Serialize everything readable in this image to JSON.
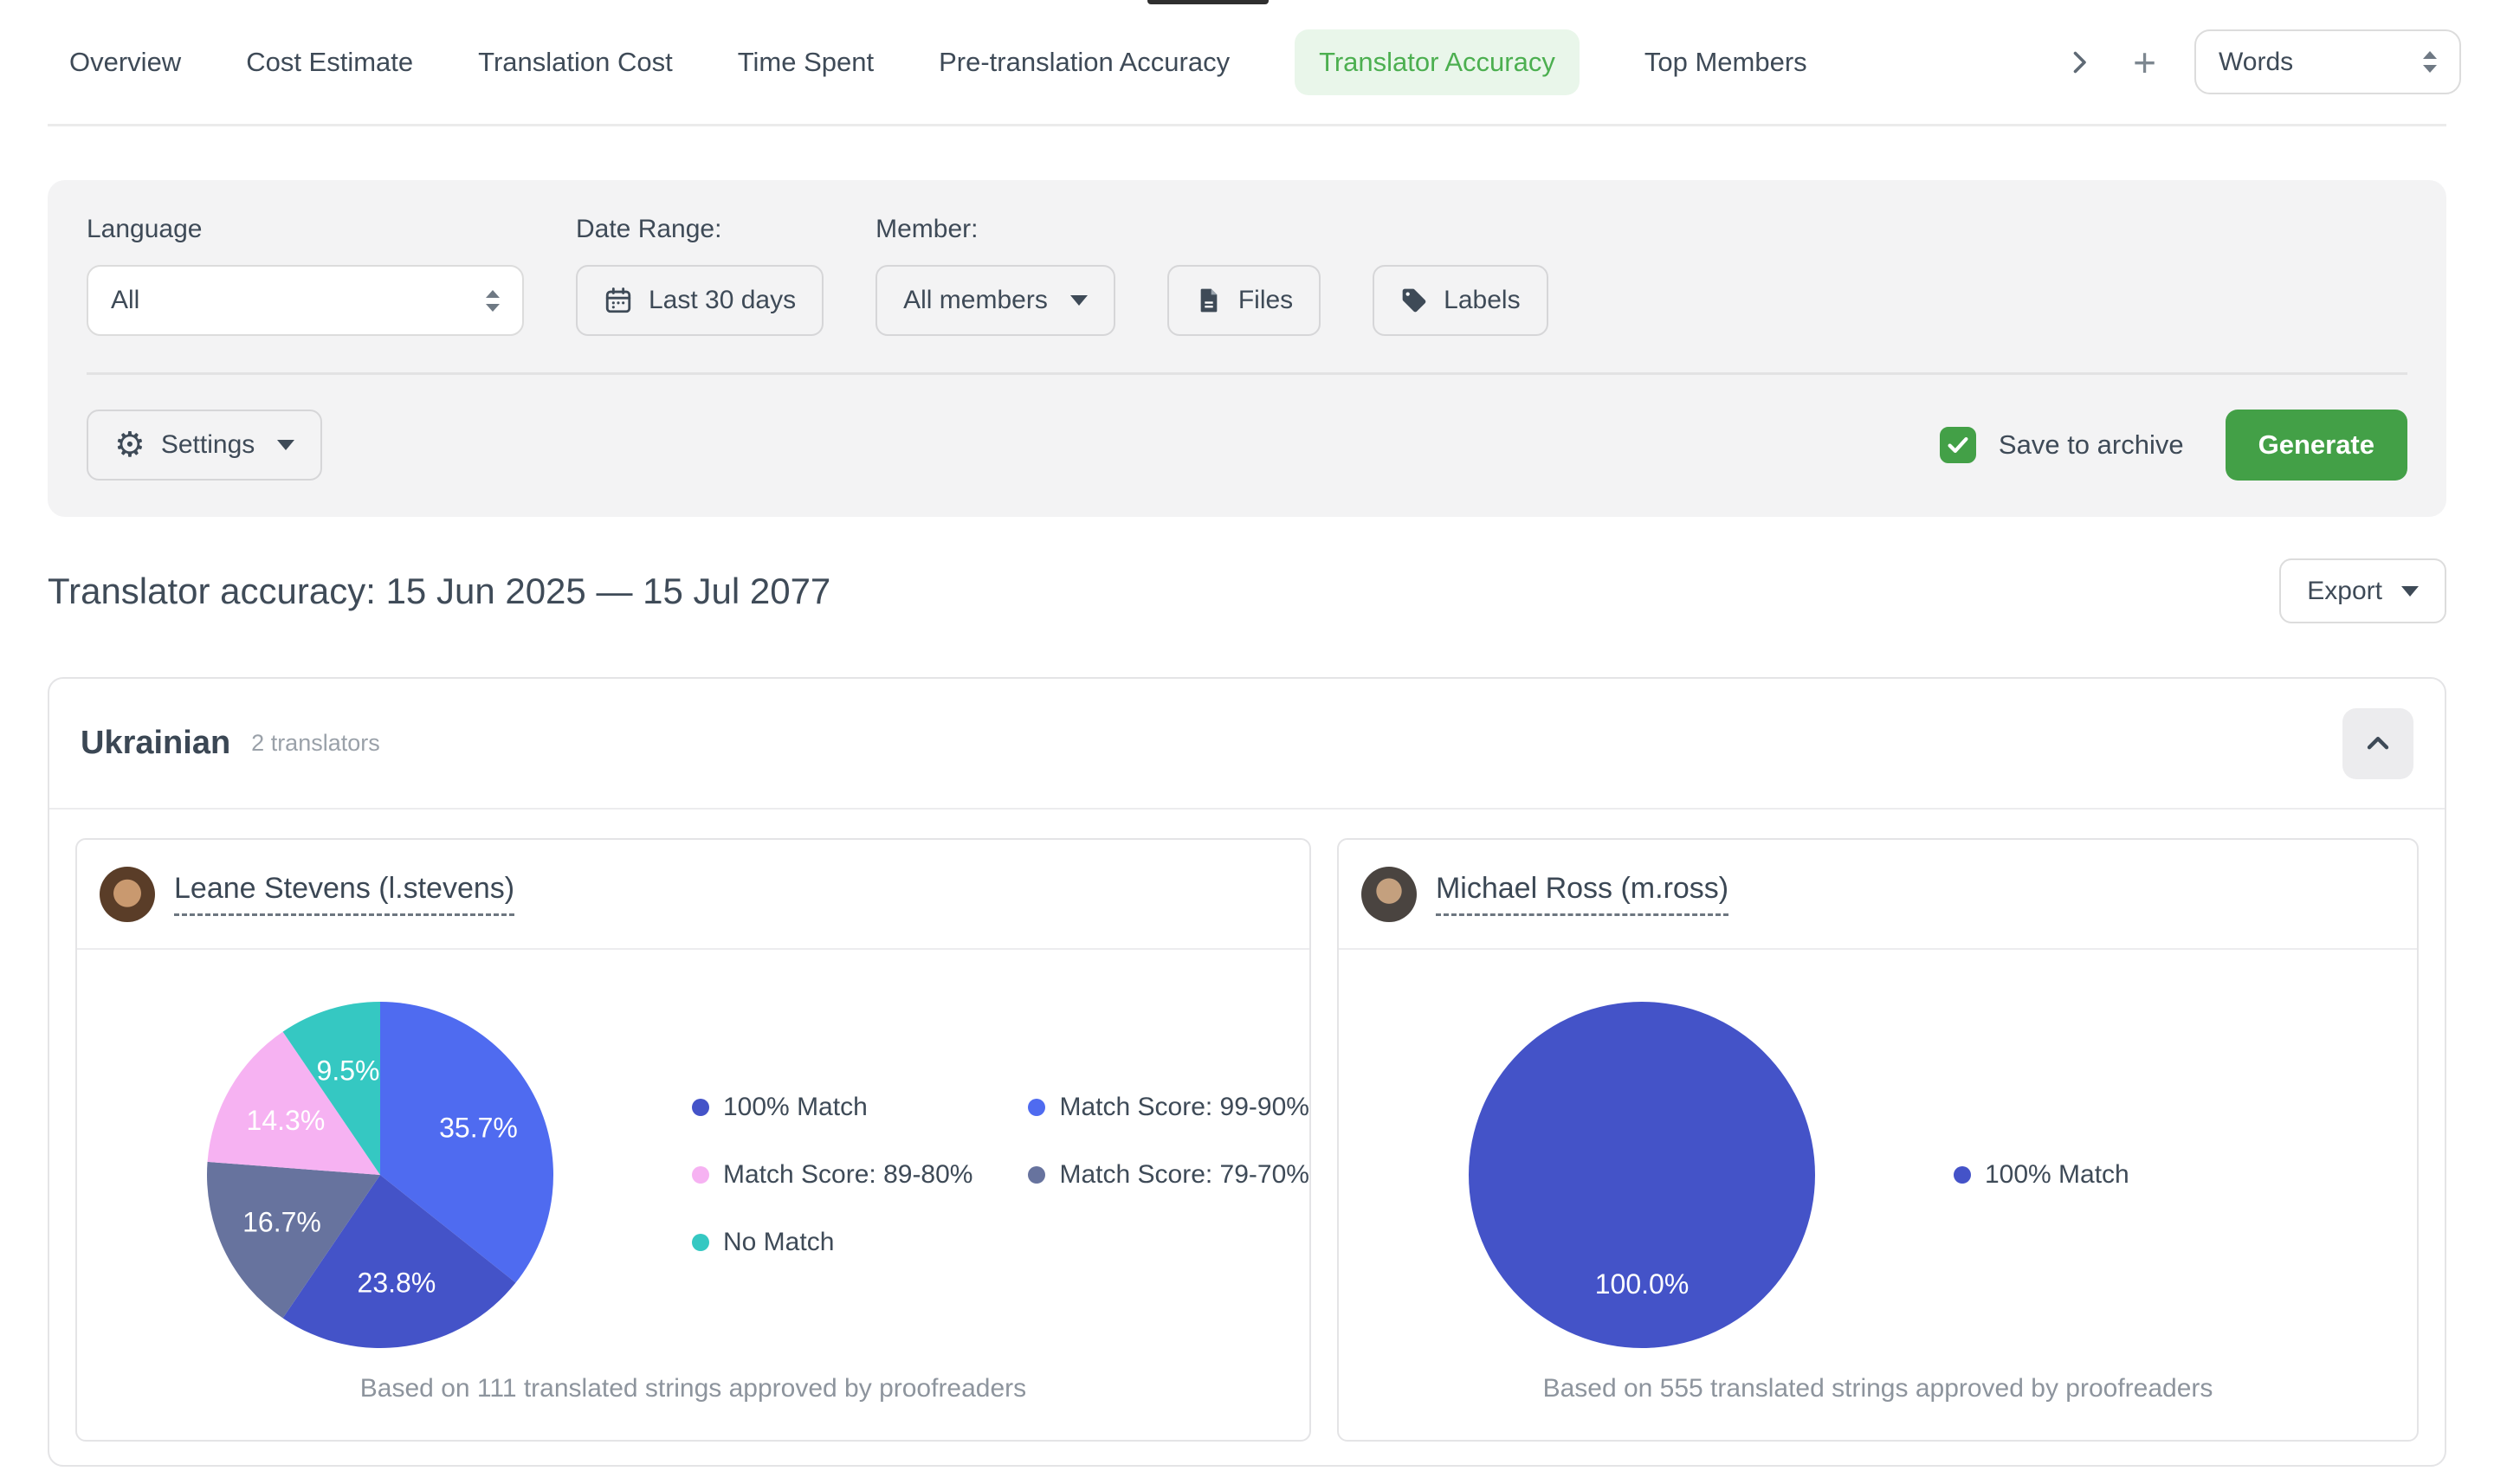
{
  "theme": {
    "accent_green": "#43a047",
    "active_tab_bg": "#e9f6ea",
    "active_tab_text": "#4caf50"
  },
  "nav": {
    "tabs": [
      {
        "label": "Overview",
        "active": false
      },
      {
        "label": "Cost Estimate",
        "active": false
      },
      {
        "label": "Translation Cost",
        "active": false
      },
      {
        "label": "Time Spent",
        "active": false
      },
      {
        "label": "Pre-translation Accuracy",
        "active": false
      },
      {
        "label": "Translator Accuracy",
        "active": true
      },
      {
        "label": "Top Members",
        "active": false
      }
    ],
    "add_icon": "+",
    "unit_select_value": "Words"
  },
  "filters": {
    "language_label": "Language",
    "language_value": "All",
    "date_range_label": "Date Range:",
    "date_range_value": "Last 30 days",
    "member_label": "Member:",
    "member_value": "All members",
    "files_label": "Files",
    "labels_label": "Labels",
    "settings_label": "Settings",
    "settings_gear_glyph": "⚙",
    "save_to_archive_label": "Save to archive",
    "save_to_archive_checked": true,
    "generate_label": "Generate"
  },
  "report": {
    "title": "Translator accuracy: 15 Jun 2025 — 15 Jul 2077",
    "export_label": "Export"
  },
  "language_section": {
    "name": "Ukrainian",
    "translators_count": "2 translators"
  },
  "chart_data": [
    {
      "type": "pie",
      "translator": "Leane Stevens (l.stevens)",
      "slices": [
        {
          "label": "Match Score: 99-90%",
          "value": 35.7,
          "color": "#4f6bf0"
        },
        {
          "label": "100% Match",
          "value": 23.8,
          "color": "#4453c8"
        },
        {
          "label": "Match Score: 79-70%",
          "value": 16.7,
          "color": "#67739e"
        },
        {
          "label": "Match Score: 89-80%",
          "value": 14.3,
          "color": "#f6b2f2"
        },
        {
          "label": "No Match",
          "value": 9.5,
          "color": "#35c8c2"
        }
      ],
      "legend": [
        {
          "label": "100% Match",
          "color": "#4453c8"
        },
        {
          "label": "Match Score: 99-90%",
          "color": "#4f6bf0"
        },
        {
          "label": "Match Score: 89-80%",
          "color": "#f6b2f2"
        },
        {
          "label": "Match Score: 79-70%",
          "color": "#67739e"
        },
        {
          "label": "No Match",
          "color": "#35c8c2"
        }
      ],
      "footer": "Based on 111 translated strings approved by proofreaders"
    },
    {
      "type": "pie",
      "translator": "Michael Ross (m.ross)",
      "slices": [
        {
          "label": "100% Match",
          "value": 100.0,
          "color": "#4453c8"
        }
      ],
      "legend": [
        {
          "label": "100% Match",
          "color": "#4453c8"
        }
      ],
      "footer": "Based on 555 translated strings approved by proofreaders"
    }
  ]
}
